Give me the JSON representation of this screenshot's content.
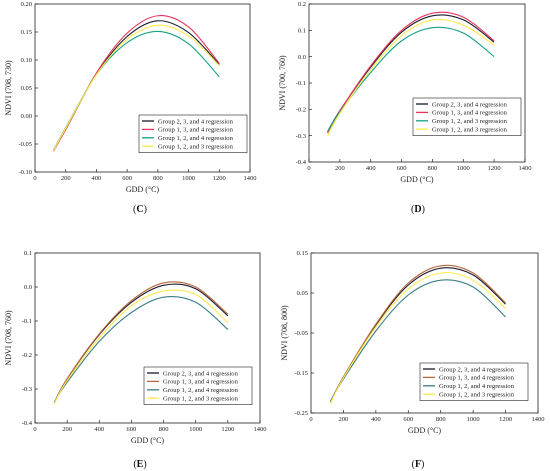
{
  "figure": {
    "panels": [
      {
        "id": "C",
        "label": "(C)",
        "letter": "C"
      },
      {
        "id": "D",
        "label": "(D)",
        "letter": "D"
      },
      {
        "id": "E",
        "label": "(E)",
        "letter": "E"
      },
      {
        "id": "F",
        "label": "(F)",
        "letter": "F"
      }
    ]
  },
  "chart_data": [
    {
      "type": "line",
      "panel": "C",
      "xlabel": "GDD (°C)",
      "ylabel": "NDVI (708, 730)",
      "xlim": [
        0,
        1400
      ],
      "ylim": [
        -0.1,
        0.2
      ],
      "xticks": [
        0,
        200,
        400,
        600,
        800,
        1000,
        1200,
        1400
      ],
      "xtick_labels": [
        "0",
        "200",
        "400",
        "600",
        "800",
        "1000",
        "1200",
        "1400"
      ],
      "yticks": [
        -0.1,
        -0.05,
        0,
        0.05,
        0.1,
        0.15,
        0.2
      ],
      "ytick_labels": [
        "-0.10",
        "-0.05",
        "0.00",
        "0.05",
        "0.10",
        "0.15",
        "0.20"
      ],
      "legend_position": "bottom-right",
      "grid": false,
      "series": [
        {
          "name": "Group 2, 3, and 4 regression",
          "color": "#1a1a2e",
          "x": [
            120,
            200,
            400,
            600,
            800,
            1000,
            1200
          ],
          "y": [
            -0.062,
            -0.024,
            0.075,
            0.142,
            0.17,
            0.149,
            0.092
          ]
        },
        {
          "name": "Group 1, 3, and 4 regression",
          "color": "#e8335a",
          "x": [
            120,
            200,
            400,
            600,
            800,
            1000,
            1200
          ],
          "y": [
            -0.063,
            -0.024,
            0.077,
            0.148,
            0.179,
            0.159,
            0.094
          ]
        },
        {
          "name": "Group 1, 2, and 4 regression",
          "color": "#16a085",
          "x": [
            120,
            200,
            400,
            600,
            800,
            1000,
            1200
          ],
          "y": [
            -0.061,
            -0.021,
            0.074,
            0.131,
            0.151,
            0.129,
            0.07
          ]
        },
        {
          "name": "Group 1, 2, and 3 regression",
          "color": "#ffe94d",
          "x": [
            120,
            200,
            400,
            600,
            800,
            1000,
            1200
          ],
          "y": [
            -0.062,
            -0.022,
            0.074,
            0.137,
            0.162,
            0.143,
            0.09
          ]
        }
      ]
    },
    {
      "type": "line",
      "panel": "D",
      "xlabel": "GDD (°C)",
      "ylabel": "NDVI (700, 760)",
      "xlim": [
        0,
        1400
      ],
      "ylim": [
        -0.4,
        0.2
      ],
      "xticks": [
        0,
        200,
        400,
        600,
        800,
        1000,
        1200,
        1400
      ],
      "xtick_labels": [
        "0",
        "200",
        "400",
        "600",
        "800",
        "1000",
        "1200",
        "1400"
      ],
      "yticks": [
        -0.4,
        -0.3,
        -0.2,
        -0.1,
        0,
        0.1,
        0.2
      ],
      "ytick_labels": [
        "-0.4",
        "-0.3",
        "-0.2",
        "-0.1",
        "0.0",
        "0.1",
        "0.2"
      ],
      "legend_position": "bottom-right",
      "grid": false,
      "series": [
        {
          "name": "Group 2, 3, and 4 regression",
          "color": "#1a1a2e",
          "x": [
            120,
            200,
            400,
            600,
            800,
            1000,
            1200
          ],
          "y": [
            -0.285,
            -0.205,
            -0.04,
            0.093,
            0.155,
            0.14,
            0.055
          ]
        },
        {
          "name": "Group 1, 3, and 4 regression",
          "color": "#e8335a",
          "x": [
            120,
            200,
            400,
            600,
            800,
            1000,
            1200
          ],
          "y": [
            -0.29,
            -0.206,
            -0.035,
            0.1,
            0.165,
            0.15,
            0.06
          ]
        },
        {
          "name": "Group 1, 2, and 3 regression",
          "color": "#16a085",
          "x": [
            120,
            200,
            400,
            600,
            800,
            1000,
            1200
          ],
          "y": [
            -0.285,
            -0.21,
            -0.06,
            0.06,
            0.11,
            0.09,
            0.0
          ]
        },
        {
          "name": "Group 1, 2, and 3 regression",
          "color": "#ffe94d",
          "x": [
            120,
            200,
            400,
            600,
            800,
            1000,
            1200
          ],
          "y": [
            -0.3,
            -0.215,
            -0.05,
            0.08,
            0.14,
            0.12,
            0.045
          ]
        }
      ]
    },
    {
      "type": "line",
      "panel": "E",
      "xlabel": "GDD (°C)",
      "ylabel": "NDVI (708, 760)",
      "xlim": [
        0,
        1400
      ],
      "ylim": [
        -0.4,
        0.1
      ],
      "xticks": [
        0,
        200,
        400,
        600,
        800,
        1000,
        1200,
        1400
      ],
      "xtick_labels": [
        "0",
        "200",
        "400",
        "600",
        "800",
        "1000",
        "1200",
        "1400"
      ],
      "yticks": [
        -0.4,
        -0.3,
        -0.2,
        -0.1,
        0,
        0.1
      ],
      "ytick_labels": [
        "-0.4",
        "-0.3",
        "-0.2",
        "-0.1",
        "0.0",
        "0.1"
      ],
      "legend_position": "bottom-right",
      "grid": false,
      "series": [
        {
          "name": "Group 2, 3, and 4 regression",
          "color": "#1a1a2e",
          "x": [
            120,
            200,
            400,
            600,
            800,
            1000,
            1200
          ],
          "y": [
            -0.34,
            -0.27,
            -0.14,
            -0.045,
            0.005,
            -0.005,
            -0.085
          ]
        },
        {
          "name": "Group 1, 3, and 4 regression",
          "color": "#b5653a",
          "x": [
            120,
            200,
            400,
            600,
            800,
            1000,
            1200
          ],
          "y": [
            -0.342,
            -0.27,
            -0.138,
            -0.04,
            0.012,
            0.0,
            -0.08
          ]
        },
        {
          "name": "Group 1, 2, and 4 regression",
          "color": "#3a7d86",
          "x": [
            120,
            200,
            400,
            600,
            800,
            1000,
            1200
          ],
          "y": [
            -0.338,
            -0.28,
            -0.16,
            -0.075,
            -0.03,
            -0.045,
            -0.125
          ]
        },
        {
          "name": "Group 1, 2, and 3 regression",
          "color": "#ffe94d",
          "x": [
            120,
            200,
            400,
            600,
            800,
            1000,
            1200
          ],
          "y": [
            -0.342,
            -0.275,
            -0.15,
            -0.055,
            -0.012,
            -0.022,
            -0.105
          ]
        }
      ]
    },
    {
      "type": "line",
      "panel": "F",
      "xlabel": "GDD (°C)",
      "ylabel": "NDVI (708, 800)",
      "xlim": [
        0,
        1400
      ],
      "ylim": [
        -0.25,
        0.15
      ],
      "xticks": [
        0,
        200,
        400,
        600,
        800,
        1000,
        1200,
        1400
      ],
      "xtick_labels": [
        "0",
        "200",
        "400",
        "600",
        "800",
        "1000",
        "1200",
        "1400"
      ],
      "yticks": [
        -0.25,
        -0.15,
        -0.05,
        0.05,
        0.15
      ],
      "ytick_labels": [
        "-0.25",
        "-0.15",
        "-0.05",
        "0.05",
        "0.15"
      ],
      "legend_position": "bottom-right",
      "grid": false,
      "series": [
        {
          "name": "Group 2, 3, and 4 regression",
          "color": "#1a1a2e",
          "x": [
            120,
            200,
            400,
            600,
            800,
            1000,
            1200
          ],
          "y": [
            -0.222,
            -0.16,
            -0.03,
            0.07,
            0.112,
            0.095,
            0.022
          ]
        },
        {
          "name": "Group 1, 3, and 4 regression",
          "color": "#b5653a",
          "x": [
            120,
            200,
            400,
            600,
            800,
            1000,
            1200
          ],
          "y": [
            -0.225,
            -0.16,
            -0.028,
            0.075,
            0.118,
            0.1,
            0.025
          ]
        },
        {
          "name": "Group 1, 2, and 4 regression",
          "color": "#3a7d86",
          "x": [
            120,
            200,
            400,
            600,
            800,
            1000,
            1200
          ],
          "y": [
            -0.22,
            -0.165,
            -0.045,
            0.045,
            0.082,
            0.065,
            -0.01
          ]
        },
        {
          "name": "Group 1, 2, and 3 regression",
          "color": "#ffe94d",
          "x": [
            120,
            200,
            400,
            600,
            800,
            1000,
            1200
          ],
          "y": [
            -0.225,
            -0.162,
            -0.035,
            0.06,
            0.1,
            0.082,
            0.012
          ]
        }
      ]
    }
  ]
}
